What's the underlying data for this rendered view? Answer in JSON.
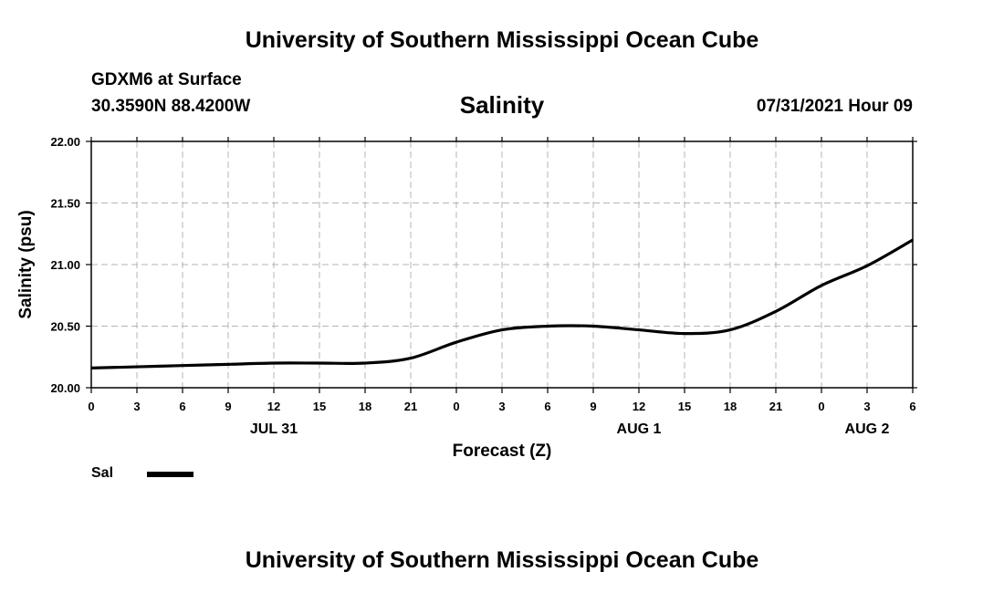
{
  "header": {
    "org_title": "University of Southern Mississippi Ocean Cube",
    "station": "GDXM6 at Surface",
    "coords": "30.3590N  88.4200W",
    "forecast_time": "07/31/2021 Hour 09"
  },
  "footer": {
    "org_title": "University of Southern Mississippi Ocean Cube"
  },
  "chart_data": {
    "type": "line",
    "title": "Salinity",
    "xlabel": "Forecast (Z)",
    "ylabel": "Salinity (psu)",
    "ylim": [
      20.0,
      22.0
    ],
    "xlim": [
      0,
      54
    ],
    "yticks": [
      "20.00",
      "20.50",
      "21.00",
      "21.50",
      "22.00"
    ],
    "xtick_labels": [
      "0",
      "3",
      "6",
      "9",
      "12",
      "15",
      "18",
      "21",
      "0",
      "3",
      "6",
      "9",
      "12",
      "15",
      "18",
      "21",
      "0",
      "3",
      "6"
    ],
    "date_labels": [
      {
        "label": "JUL 31",
        "hour": 12
      },
      {
        "label": "AUG 1",
        "hour": 36
      },
      {
        "label": "AUG 2",
        "hour": 51
      }
    ],
    "grid": true,
    "series": [
      {
        "name": "Sal",
        "color": "#000000",
        "x": [
          0,
          3,
          6,
          9,
          12,
          15,
          18,
          21,
          24,
          27,
          30,
          33,
          36,
          39,
          42,
          45,
          48,
          51,
          54
        ],
        "values": [
          20.16,
          20.17,
          20.18,
          20.19,
          20.2,
          20.2,
          20.2,
          20.24,
          20.37,
          20.47,
          20.5,
          20.5,
          20.47,
          20.44,
          20.47,
          20.62,
          20.83,
          20.99,
          21.2
        ]
      }
    ]
  }
}
